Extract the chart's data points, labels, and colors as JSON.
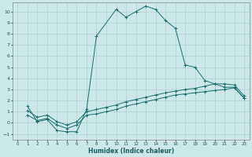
{
  "xlabel": "Humidex (Indice chaleur)",
  "background_color": "#cce8e8",
  "grid_color": "#b0d0d0",
  "line_color": "#1a6e6e",
  "xlim": [
    -0.5,
    23.5
  ],
  "ylim": [
    -1.5,
    10.8
  ],
  "xticks": [
    0,
    1,
    2,
    3,
    4,
    5,
    6,
    7,
    8,
    9,
    10,
    11,
    12,
    13,
    14,
    15,
    16,
    17,
    18,
    19,
    20,
    21,
    22,
    23
  ],
  "yticks": [
    -1,
    0,
    1,
    2,
    3,
    4,
    5,
    6,
    7,
    8,
    9,
    10
  ],
  "line1_x": [
    1,
    2,
    3,
    4,
    5,
    6,
    7,
    8,
    10,
    11,
    12,
    13,
    14,
    15,
    16,
    17,
    18,
    19,
    20,
    21,
    22,
    23
  ],
  "line1_y": [
    1.5,
    0.1,
    0.3,
    -0.7,
    -0.8,
    -0.8,
    1.2,
    7.8,
    10.2,
    9.5,
    10.0,
    10.5,
    10.2,
    9.2,
    8.5,
    5.2,
    5.0,
    3.8,
    3.5,
    3.2,
    3.2,
    2.2
  ],
  "line2_x": [
    1,
    2,
    3,
    4,
    5,
    6,
    7,
    8,
    9,
    10,
    11,
    12,
    13,
    14,
    15,
    16,
    17,
    18,
    19,
    20,
    21,
    22,
    23
  ],
  "line2_y": [
    1.1,
    0.5,
    0.7,
    0.1,
    -0.2,
    0.1,
    1.0,
    1.2,
    1.4,
    1.6,
    1.9,
    2.1,
    2.3,
    2.5,
    2.7,
    2.85,
    3.0,
    3.1,
    3.3,
    3.5,
    3.5,
    3.4,
    2.4
  ],
  "line3_x": [
    1,
    2,
    3,
    4,
    5,
    6,
    7,
    8,
    9,
    10,
    11,
    12,
    13,
    14,
    15,
    16,
    17,
    18,
    19,
    20,
    21,
    22,
    23
  ],
  "line3_y": [
    0.7,
    0.2,
    0.4,
    -0.2,
    -0.5,
    -0.2,
    0.7,
    0.8,
    1.0,
    1.2,
    1.5,
    1.7,
    1.9,
    2.1,
    2.3,
    2.5,
    2.6,
    2.7,
    2.8,
    2.9,
    3.0,
    3.15,
    2.2
  ]
}
